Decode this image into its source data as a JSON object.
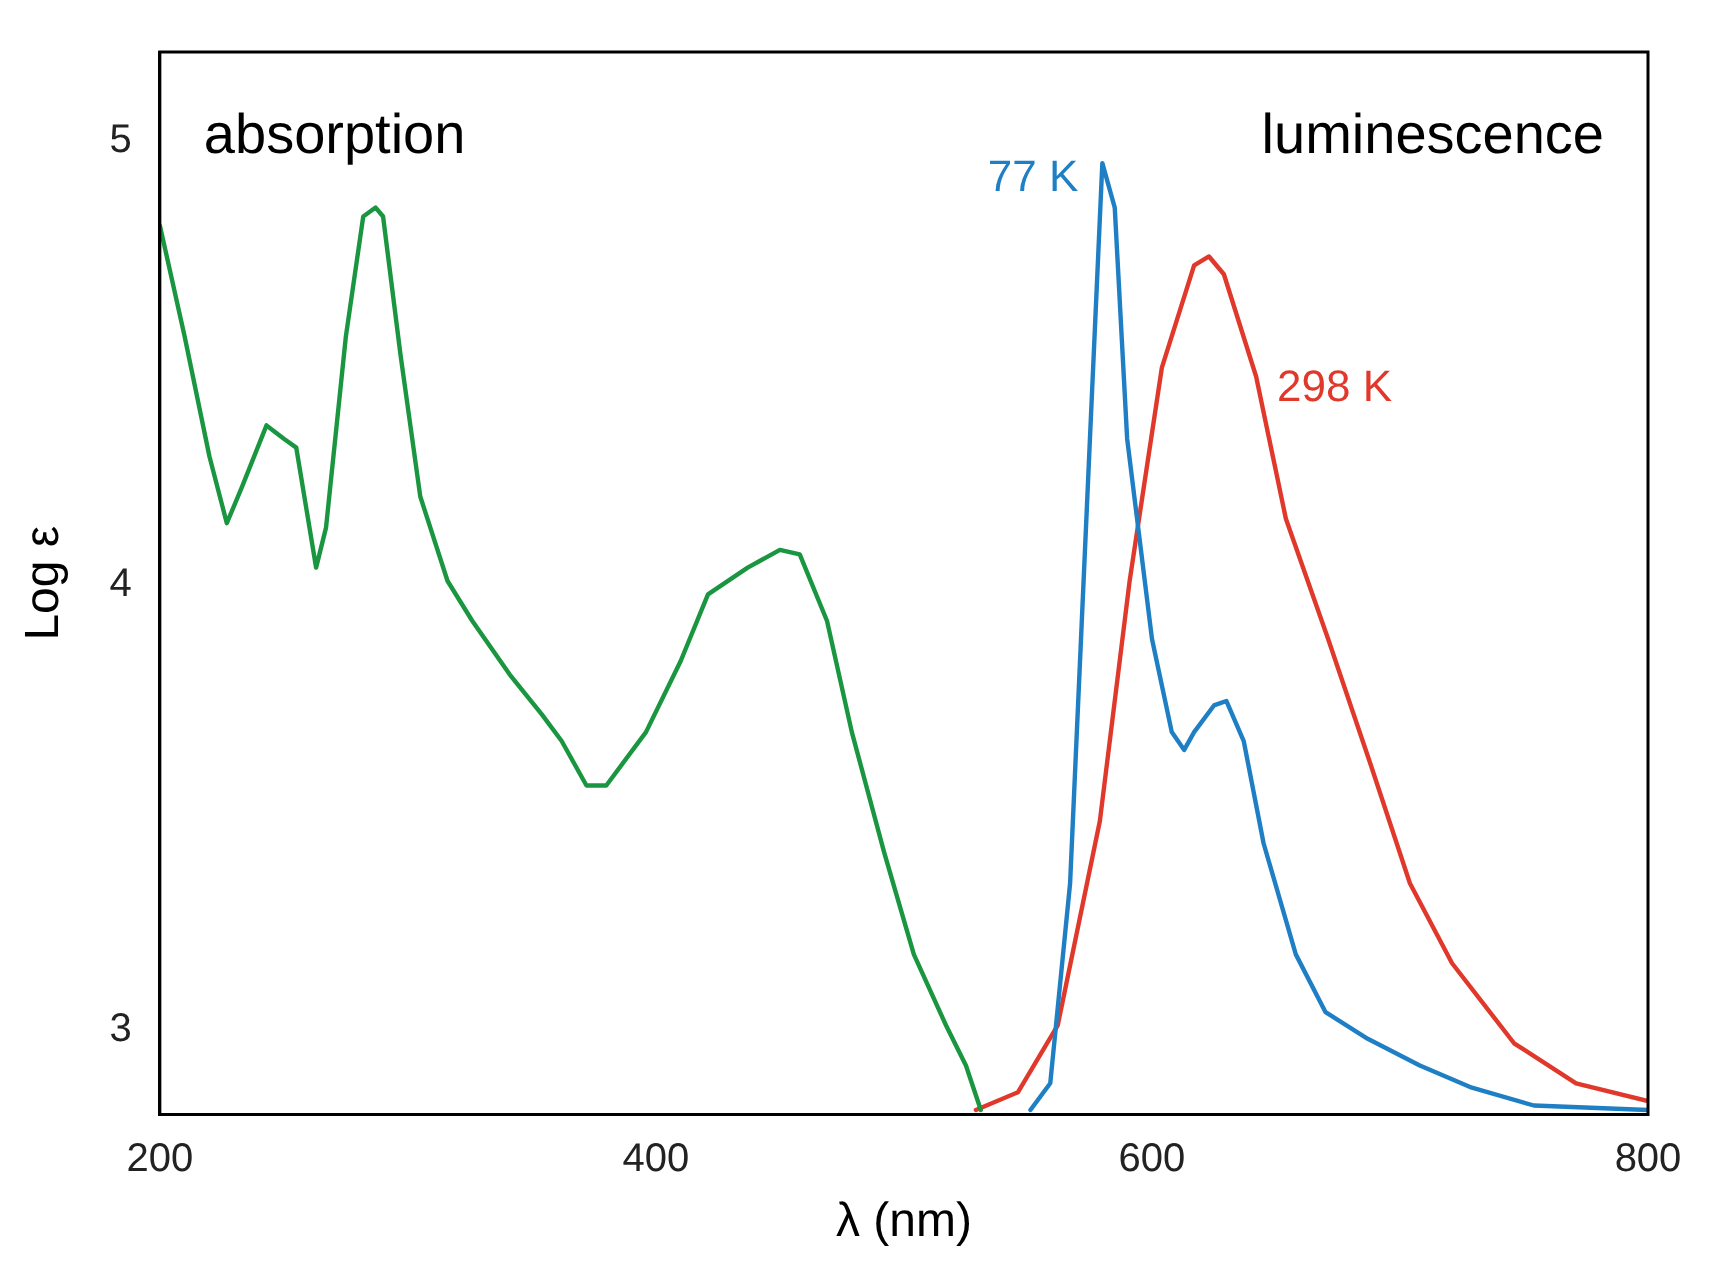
{
  "chart_data": {
    "type": "line",
    "xlabel": "λ (nm)",
    "ylabel": "Log ε",
    "xlim": [
      200,
      800
    ],
    "xticks": [
      200,
      400,
      600,
      800
    ],
    "ylim": [
      2.81,
      5.2
    ],
    "yticks": [
      3,
      4,
      5
    ],
    "grid": false,
    "legend": false,
    "marker": "none",
    "line_style": "solid",
    "annotations": [
      "absorption",
      "luminescence"
    ],
    "series": [
      {
        "color": "#1a9641",
        "x": [
          200,
          210,
          220,
          227,
          233,
          243,
          250,
          255,
          263,
          267,
          275,
          282,
          287,
          290,
          297,
          305,
          316,
          326,
          341,
          354,
          362,
          372,
          380,
          396,
          410,
          421,
          437,
          450,
          458,
          469,
          479,
          492,
          504,
          517,
          525,
          531
        ],
        "values": [
          4.81,
          4.56,
          4.29,
          4.14,
          4.22,
          4.36,
          4.33,
          4.31,
          4.04,
          4.13,
          4.56,
          4.83,
          4.85,
          4.83,
          4.52,
          4.2,
          4.01,
          3.92,
          3.8,
          3.71,
          3.65,
          3.55,
          3.55,
          3.67,
          3.83,
          3.98,
          4.04,
          4.08,
          4.07,
          3.92,
          3.67,
          3.4,
          3.17,
          3.01,
          2.92,
          2.82
        ]
      },
      {
        "name": "77 K",
        "color": "#1f7fc4",
        "x": [
          551,
          559,
          567,
          575,
          580,
          585,
          590,
          600,
          608,
          613,
          617,
          625,
          630,
          637,
          645,
          658,
          670,
          687,
          708,
          729,
          754,
          800
        ],
        "values": [
          2.82,
          2.88,
          3.33,
          4.33,
          4.95,
          4.85,
          4.33,
          3.88,
          3.67,
          3.63,
          3.67,
          3.73,
          3.74,
          3.65,
          3.42,
          3.17,
          3.04,
          2.98,
          2.92,
          2.87,
          2.83,
          2.82
        ]
      },
      {
        "name": "298 K",
        "color": "#e0392b",
        "x": [
          529,
          546,
          562,
          579,
          591,
          604,
          617,
          623,
          629,
          642,
          654,
          671,
          688,
          704,
          721,
          746,
          771,
          800
        ],
        "values": [
          2.82,
          2.86,
          3.01,
          3.47,
          4.01,
          4.49,
          4.72,
          4.74,
          4.7,
          4.47,
          4.15,
          3.88,
          3.6,
          3.33,
          3.15,
          2.97,
          2.88,
          2.84
        ]
      }
    ]
  }
}
